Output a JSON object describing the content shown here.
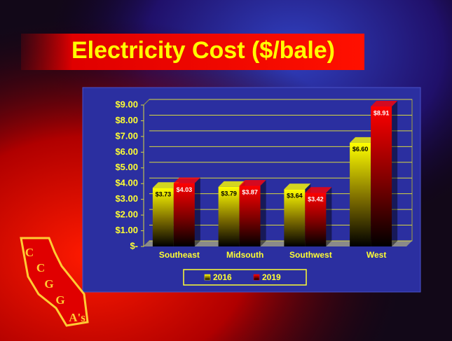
{
  "chart_data": {
    "type": "bar",
    "title": "Electricity Cost ($/bale)",
    "categories": [
      "Southeast",
      "Midsouth",
      "Southwest",
      "West"
    ],
    "series": [
      {
        "name": "2016",
        "color": "#ffff00",
        "values": [
          3.73,
          3.79,
          3.64,
          6.6
        ],
        "value_labels": [
          "$3.73",
          "$3.79",
          "$3.64",
          "$6.60"
        ]
      },
      {
        "name": "2019",
        "color": "#ff0000",
        "values": [
          4.03,
          3.87,
          3.42,
          8.91
        ],
        "value_labels": [
          "$4.03",
          "$3.87",
          "$3.42",
          "$8.91"
        ]
      }
    ],
    "ylim": [
      0,
      9
    ],
    "yticks": [
      {
        "value": 0,
        "label": "$-"
      },
      {
        "value": 1,
        "label": "$1.00"
      },
      {
        "value": 2,
        "label": "$2.00"
      },
      {
        "value": 3,
        "label": "$3.00"
      },
      {
        "value": 4,
        "label": "$4.00"
      },
      {
        "value": 5,
        "label": "$5.00"
      },
      {
        "value": 6,
        "label": "$6.00"
      },
      {
        "value": 7,
        "label": "$7.00"
      },
      {
        "value": 8,
        "label": "$8.00"
      },
      {
        "value": 9,
        "label": "$9.00"
      }
    ],
    "grid": true,
    "legend": "bottom"
  },
  "logo": [
    "C",
    "C",
    "G",
    "G",
    "A's"
  ]
}
